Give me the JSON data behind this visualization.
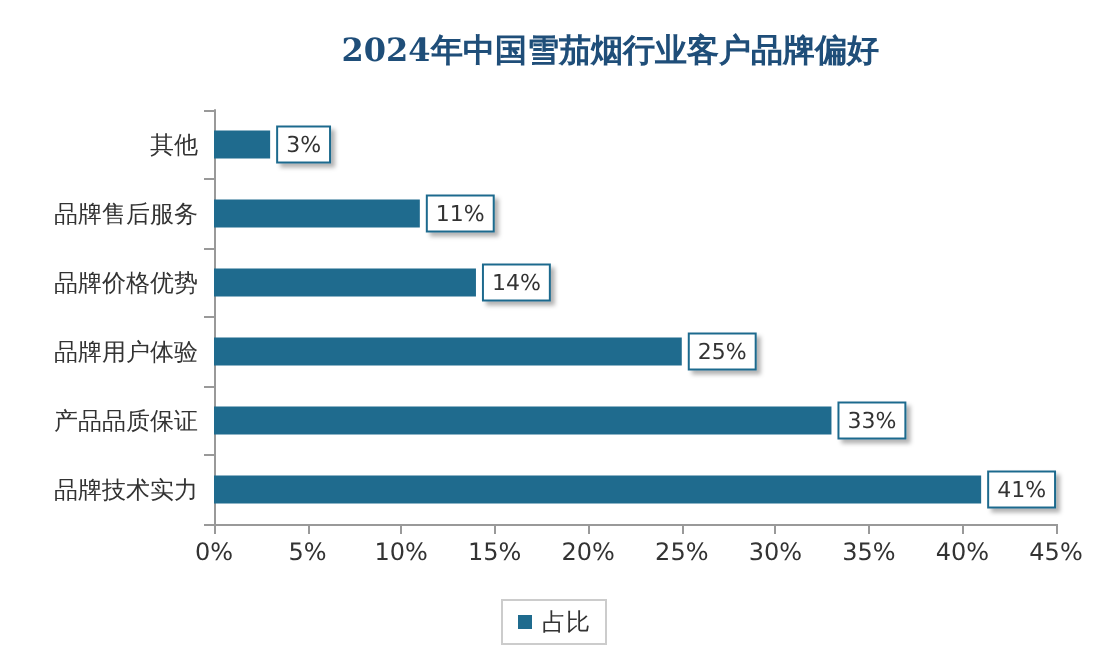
{
  "chart_data": {
    "type": "bar",
    "orientation": "horizontal",
    "title": "2024年中国雪茄烟行业客户品牌偏好",
    "categories": [
      "其他",
      "品牌售后服务",
      "品牌价格优势",
      "品牌用户体验",
      "产品品质保证",
      "品牌技术实力"
    ],
    "series": [
      {
        "name": "占比",
        "color": "#1f6b8e",
        "values": [
          3,
          11,
          14,
          25,
          33,
          41
        ],
        "value_labels": [
          "3%",
          "11%",
          "14%",
          "25%",
          "33%",
          "41%"
        ]
      }
    ],
    "xlim": [
      0,
      45
    ],
    "xticks": [
      {
        "value": 0,
        "label": "0%"
      },
      {
        "value": 5,
        "label": "5%"
      },
      {
        "value": 10,
        "label": "10%"
      },
      {
        "value": 15,
        "label": "15%"
      },
      {
        "value": 20,
        "label": "20%"
      },
      {
        "value": 25,
        "label": "25%"
      },
      {
        "value": 30,
        "label": "30%"
      },
      {
        "value": 35,
        "label": "35%"
      },
      {
        "value": 40,
        "label": "40%"
      },
      {
        "value": 45,
        "label": "45%"
      }
    ],
    "grid": false,
    "legend": "bottom"
  }
}
